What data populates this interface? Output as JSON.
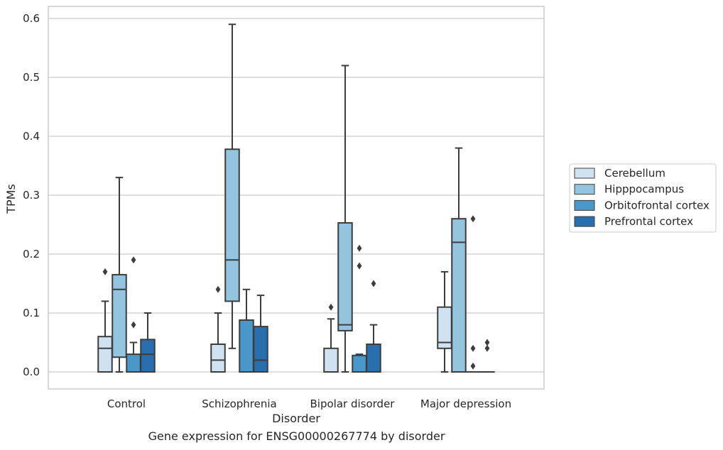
{
  "caption": "Gene expression for ENSG00000267774 by disorder",
  "chart_data": {
    "type": "box",
    "xlabel": "Disorder",
    "ylabel": "TPMs",
    "ylim": [
      -0.028,
      0.62
    ],
    "yticks": [
      0.0,
      0.1,
      0.2,
      0.3,
      0.4,
      0.5,
      0.6
    ],
    "ytick_labels": [
      "0.0",
      "0.1",
      "0.2",
      "0.3",
      "0.4",
      "0.5",
      "0.6"
    ],
    "grid": true,
    "legend_position": "right",
    "categories": [
      "Control",
      "Schizophrenia",
      "Bipolar disorder",
      "Major depression"
    ],
    "series": [
      {
        "name": "Cerebellum",
        "color": "#d0e1f2",
        "boxes": [
          {
            "whislo": 0.0,
            "q1": 0.0,
            "med": 0.04,
            "q3": 0.06,
            "whishi": 0.12,
            "fliers": [
              0.17
            ]
          },
          {
            "whislo": 0.0,
            "q1": 0.0,
            "med": 0.02,
            "q3": 0.047,
            "whishi": 0.1,
            "fliers": [
              0.14
            ]
          },
          {
            "whislo": 0.0,
            "q1": 0.0,
            "med": 0.0,
            "q3": 0.04,
            "whishi": 0.09,
            "fliers": [
              0.11
            ]
          },
          {
            "whislo": 0.0,
            "q1": 0.04,
            "med": 0.05,
            "q3": 0.11,
            "whishi": 0.17,
            "fliers": []
          }
        ]
      },
      {
        "name": "Hipppocampus",
        "color": "#94c4df",
        "boxes": [
          {
            "whislo": 0.0,
            "q1": 0.025,
            "med": 0.14,
            "q3": 0.165,
            "whishi": 0.33,
            "fliers": []
          },
          {
            "whislo": 0.04,
            "q1": 0.12,
            "med": 0.19,
            "q3": 0.378,
            "whishi": 0.59,
            "fliers": []
          },
          {
            "whislo": 0.0,
            "q1": 0.07,
            "med": 0.08,
            "q3": 0.253,
            "whishi": 0.52,
            "fliers": []
          },
          {
            "whislo": 0.0,
            "q1": 0.0,
            "med": 0.22,
            "q3": 0.26,
            "whishi": 0.38,
            "fliers": []
          }
        ]
      },
      {
        "name": "Orbitofrontal cortex",
        "color": "#4a98c9",
        "boxes": [
          {
            "whislo": 0.0,
            "q1": 0.0,
            "med": 0.0,
            "q3": 0.03,
            "whishi": 0.05,
            "fliers": [
              0.08,
              0.19
            ]
          },
          {
            "whislo": 0.0,
            "q1": 0.0,
            "med": 0.0,
            "q3": 0.088,
            "whishi": 0.14,
            "fliers": []
          },
          {
            "whislo": 0.0,
            "q1": 0.0,
            "med": 0.0,
            "q3": 0.028,
            "whishi": 0.03,
            "fliers": [
              0.18,
              0.21
            ]
          },
          {
            "whislo": 0.0,
            "q1": 0.0,
            "med": 0.0,
            "q3": 0.0,
            "whishi": 0.0,
            "fliers": [
              0.01,
              0.04,
              0.26
            ]
          }
        ]
      },
      {
        "name": "Prefrontal cortex",
        "color": "#2a6fad",
        "boxes": [
          {
            "whislo": 0.0,
            "q1": 0.0,
            "med": 0.03,
            "q3": 0.055,
            "whishi": 0.1,
            "fliers": []
          },
          {
            "whislo": 0.0,
            "q1": 0.0,
            "med": 0.02,
            "q3": 0.077,
            "whishi": 0.13,
            "fliers": []
          },
          {
            "whislo": 0.0,
            "q1": 0.0,
            "med": 0.0,
            "q3": 0.047,
            "whishi": 0.08,
            "fliers": [
              0.15
            ]
          },
          {
            "whislo": 0.0,
            "q1": 0.0,
            "med": 0.0,
            "q3": 0.0,
            "whishi": 0.0,
            "fliers": [
              0.04,
              0.05
            ]
          }
        ]
      }
    ]
  }
}
